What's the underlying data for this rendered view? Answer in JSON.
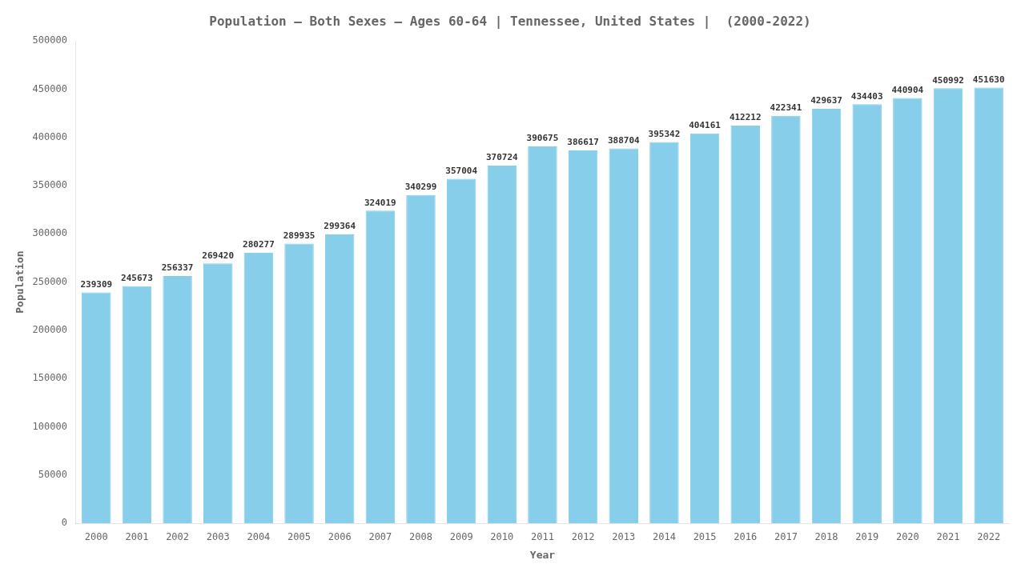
{
  "chart_data": {
    "type": "bar",
    "title": "Population – Both Sexes – Ages 60-64 | Tennessee, United States |  (2000-2022)",
    "x_label": "Year",
    "y_label": "Population",
    "categories": [
      "2000",
      "2001",
      "2002",
      "2003",
      "2004",
      "2005",
      "2006",
      "2007",
      "2008",
      "2009",
      "2010",
      "2011",
      "2012",
      "2013",
      "2014",
      "2015",
      "2016",
      "2017",
      "2018",
      "2019",
      "2020",
      "2021",
      "2022"
    ],
    "values": [
      239309,
      245673,
      256337,
      269420,
      280277,
      289935,
      299364,
      324019,
      340299,
      357004,
      370724,
      390675,
      386617,
      388704,
      395342,
      404161,
      412212,
      422341,
      429637,
      434403,
      440904,
      450992,
      451630
    ],
    "color": "#87CEEB",
    "ylim": [
      0,
      500000
    ],
    "yticks": [
      0,
      50000,
      100000,
      150000,
      200000,
      250000,
      300000,
      350000,
      400000,
      450000,
      500000
    ],
    "grid": false,
    "data_labels": true
  }
}
